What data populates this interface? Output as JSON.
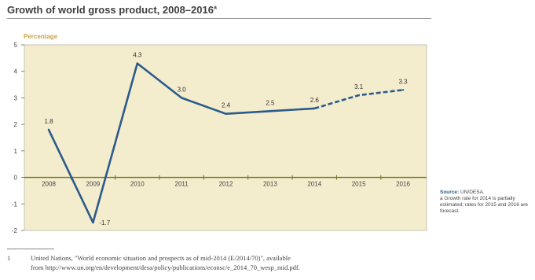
{
  "chart_data": {
    "type": "line",
    "title": "Growth of world gross product, 2008–2016",
    "title_note_marker": "a",
    "ylabel": "Percentage",
    "xlabel": "",
    "categories": [
      "2008",
      "2009",
      "2010",
      "2011",
      "2012",
      "2013",
      "2014",
      "2015",
      "2016"
    ],
    "series": [
      {
        "values": [
          1.8,
          -1.7,
          4.3,
          3.0,
          2.4,
          2.5,
          2.6,
          3.1,
          3.3
        ],
        "forecast_from_index": 6
      }
    ],
    "data_labels": [
      "1.8",
      "-1.7",
      "4.3",
      "3.0",
      "2.4",
      "2.5",
      "2.6",
      "3.1",
      "3.3"
    ],
    "ylim": [
      -2,
      5
    ],
    "yticks": [
      "-2",
      "-1",
      "0",
      "1",
      "2",
      "3",
      "4",
      "5"
    ],
    "grid": false,
    "colors": {
      "line": "#2b5b8c",
      "plot_bg": "#f3eccd",
      "zero_line": "#6b7a1f",
      "label_accent": "#c9a24b"
    }
  },
  "source_note": {
    "label": "Source:",
    "text": "UN/DESA.",
    "note": "a Growth rate for 2014 is partially estimated; rates for 2015 and 2016 are forecast."
  },
  "footnote": {
    "number": "1",
    "line1": "United Nations, \"World economic situation and prospects as of mid-2014 (E/2014/70)\", available",
    "line2": "from http://www.un.org/en/development/desa/policy/publications/econsc/e_2014_70_wesp_mid.pdf."
  }
}
